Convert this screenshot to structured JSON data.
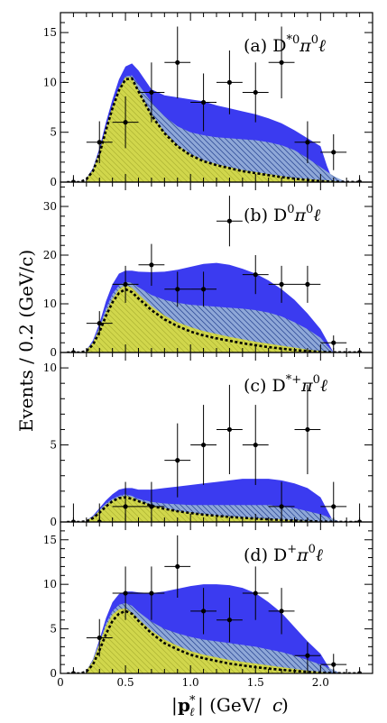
{
  "figure": {
    "ylabel": "Events / 0.2 (GeV/c)",
    "xlabel": "|p*ℓ| (GeV/c)",
    "x_ticks": [
      "0",
      "0.5",
      "1.0",
      "1.5",
      "2.0"
    ]
  },
  "colors": {
    "total_fill": "#3b3bf0",
    "hatched_fill": "#8fa8d8",
    "yellow_fill": "#f5f000",
    "dashed_curve": "#000000",
    "points": "#000000"
  },
  "chart_data": [
    {
      "type": "area",
      "panel_label": "(a) D*0π0ℓ",
      "label_prefix": "(a) D",
      "label_sup": "*0",
      "label_mid": "π",
      "label_sup2": "0",
      "label_end": "ℓ",
      "ylim": [
        0,
        17
      ],
      "y_ticks": [
        0,
        5,
        10,
        15
      ],
      "total": {
        "x": [
          0.2,
          0.25,
          0.3,
          0.35,
          0.4,
          0.45,
          0.5,
          0.55,
          0.6,
          0.7,
          0.8,
          0.9,
          1.0,
          1.1,
          1.2,
          1.3,
          1.4,
          1.5,
          1.6,
          1.7,
          1.8,
          1.9,
          2.0,
          2.05,
          2.1
        ],
        "y": [
          0.4,
          1.4,
          3.4,
          6.0,
          8.3,
          10.3,
          11.6,
          11.9,
          11.2,
          9.3,
          8.7,
          8.5,
          8.3,
          8.1,
          7.7,
          7.4,
          7.1,
          6.8,
          6.4,
          5.9,
          5.2,
          4.4,
          3.6,
          1.6,
          0.0
        ]
      },
      "hatched": {
        "x": [
          0.2,
          0.25,
          0.3,
          0.35,
          0.4,
          0.45,
          0.5,
          0.55,
          0.6,
          0.7,
          0.8,
          0.9,
          1.0,
          1.1,
          1.2,
          1.3,
          1.4,
          1.5,
          1.6,
          1.7,
          1.8,
          1.9,
          2.0,
          2.1,
          2.2
        ],
        "y": [
          0.4,
          1.3,
          3.1,
          5.5,
          7.7,
          9.5,
          10.6,
          10.7,
          9.8,
          8.0,
          6.6,
          5.6,
          5.0,
          4.7,
          4.5,
          4.4,
          4.3,
          4.2,
          4.0,
          3.7,
          3.2,
          2.4,
          1.5,
          0.6,
          0.0
        ]
      },
      "yellow": {
        "x": [
          0.2,
          0.25,
          0.3,
          0.35,
          0.4,
          0.45,
          0.5,
          0.55,
          0.6,
          0.7,
          0.8,
          0.9,
          1.0,
          1.1,
          1.2,
          1.3,
          1.4,
          1.5,
          1.6,
          1.7,
          1.8,
          1.9,
          2.0,
          2.1,
          2.2
        ],
        "y": [
          0.35,
          1.2,
          3.0,
          5.4,
          7.6,
          9.4,
          10.5,
          10.5,
          9.2,
          6.8,
          5.0,
          3.7,
          2.8,
          2.2,
          1.8,
          1.5,
          1.2,
          1.0,
          0.8,
          0.6,
          0.4,
          0.3,
          0.2,
          0.1,
          0.0
        ]
      },
      "dashed": {
        "x": [
          0.05,
          0.15,
          0.2,
          0.25,
          0.3,
          0.35,
          0.4,
          0.45,
          0.5,
          0.55,
          0.6,
          0.7,
          0.8,
          0.9,
          1.0,
          1.1,
          1.2,
          1.3,
          1.4,
          1.5,
          1.6,
          1.7,
          1.8,
          1.9,
          2.0,
          2.1,
          2.2,
          2.3
        ],
        "y": [
          0,
          0,
          0.3,
          1.1,
          2.8,
          5.2,
          7.4,
          9.2,
          10.3,
          10.4,
          9.1,
          6.7,
          4.9,
          3.6,
          2.7,
          2.1,
          1.7,
          1.4,
          1.1,
          0.9,
          0.7,
          0.5,
          0.35,
          0.2,
          0.1,
          0.05,
          0.02,
          0
        ]
      },
      "points": {
        "x": [
          0.1,
          0.3,
          0.5,
          0.7,
          0.9,
          1.1,
          1.3,
          1.5,
          1.7,
          1.9,
          2.1,
          2.3
        ],
        "y": [
          0,
          4,
          6,
          9,
          12,
          8,
          10,
          9,
          12,
          4,
          3,
          0
        ],
        "yerr": [
          0.7,
          2.1,
          2.6,
          3.0,
          3.6,
          2.9,
          3.2,
          3.0,
          3.6,
          2.1,
          1.8,
          0.7
        ]
      }
    },
    {
      "type": "area",
      "panel_label": "(b) D0π0ℓ",
      "label_prefix": "(b) D",
      "label_sup": "0",
      "label_mid": "π",
      "label_sup2": "0",
      "label_end": "ℓ",
      "ylim": [
        0,
        35
      ],
      "y_ticks": [
        0,
        10,
        20,
        30
      ],
      "total": {
        "x": [
          0.2,
          0.25,
          0.3,
          0.35,
          0.4,
          0.45,
          0.5,
          0.55,
          0.6,
          0.7,
          0.8,
          0.9,
          1.0,
          1.1,
          1.2,
          1.3,
          1.4,
          1.5,
          1.6,
          1.7,
          1.8,
          1.9,
          2.0,
          2.05,
          2.1
        ],
        "y": [
          0.5,
          2.5,
          6.0,
          10.5,
          14.0,
          16.2,
          16.8,
          16.8,
          16.6,
          16.5,
          16.6,
          17.0,
          17.6,
          18.2,
          18.4,
          18.0,
          17.2,
          16.2,
          14.8,
          13.0,
          10.8,
          8.0,
          4.8,
          2.4,
          0.0
        ]
      },
      "hatched": {
        "x": [
          0.2,
          0.25,
          0.3,
          0.35,
          0.4,
          0.45,
          0.5,
          0.55,
          0.6,
          0.7,
          0.8,
          0.9,
          1.0,
          1.1,
          1.2,
          1.3,
          1.4,
          1.5,
          1.6,
          1.7,
          1.8,
          1.9,
          2.0,
          2.05,
          2.1
        ],
        "y": [
          0.5,
          2.2,
          5.3,
          9.0,
          12.0,
          13.8,
          14.5,
          14.3,
          13.4,
          11.8,
          10.8,
          10.2,
          9.8,
          9.6,
          9.4,
          9.2,
          9.0,
          8.7,
          8.2,
          7.4,
          6.2,
          4.8,
          3.0,
          1.4,
          0.0
        ]
      },
      "yellow": {
        "x": [
          0.2,
          0.25,
          0.3,
          0.35,
          0.4,
          0.45,
          0.5,
          0.55,
          0.6,
          0.7,
          0.8,
          0.9,
          1.0,
          1.1,
          1.2,
          1.3,
          1.4,
          1.5,
          1.6,
          1.7,
          1.8,
          1.9,
          2.0,
          2.1
        ],
        "y": [
          0.45,
          2.0,
          4.8,
          8.2,
          11.0,
          13.0,
          13.8,
          13.3,
          12.0,
          9.5,
          7.6,
          6.2,
          5.2,
          4.4,
          3.8,
          3.2,
          2.7,
          2.2,
          1.8,
          1.4,
          1.0,
          0.6,
          0.3,
          0.0
        ]
      },
      "dashed": {
        "x": [
          0.05,
          0.15,
          0.2,
          0.25,
          0.3,
          0.35,
          0.4,
          0.45,
          0.5,
          0.55,
          0.6,
          0.7,
          0.8,
          0.9,
          1.0,
          1.1,
          1.2,
          1.3,
          1.4,
          1.5,
          1.6,
          1.7,
          1.8,
          1.9,
          2.0,
          2.1,
          2.2,
          2.3
        ],
        "y": [
          0,
          0,
          0.3,
          1.6,
          4.2,
          7.5,
          10.3,
          12.2,
          13.0,
          12.4,
          11.1,
          8.7,
          6.8,
          5.4,
          4.3,
          3.5,
          2.9,
          2.4,
          1.9,
          1.5,
          1.1,
          0.8,
          0.5,
          0.3,
          0.15,
          0.05,
          0.02,
          0
        ]
      },
      "points": {
        "x": [
          0.1,
          0.3,
          0.5,
          0.7,
          0.9,
          1.1,
          1.3,
          1.5,
          1.7,
          1.9,
          2.1,
          2.3
        ],
        "y": [
          0,
          6,
          14,
          18,
          13,
          13,
          27,
          16,
          14,
          14,
          2,
          0
        ],
        "yerr": [
          0.8,
          2.5,
          3.8,
          4.3,
          3.6,
          3.6,
          5.2,
          4.0,
          3.8,
          3.8,
          1.5,
          0.8
        ]
      }
    },
    {
      "type": "area",
      "panel_label": "(c) D*+π0ℓ",
      "label_prefix": "(c) D",
      "label_sup": "*+",
      "label_mid": "π",
      "label_sup2": "0",
      "label_end": "ℓ",
      "ylim": [
        0,
        11
      ],
      "y_ticks": [
        0,
        5,
        10
      ],
      "total": {
        "x": [
          0.2,
          0.25,
          0.3,
          0.35,
          0.4,
          0.45,
          0.5,
          0.55,
          0.6,
          0.7,
          0.8,
          0.9,
          1.0,
          1.1,
          1.2,
          1.3,
          1.4,
          1.5,
          1.6,
          1.7,
          1.8,
          1.9,
          2.0,
          2.05,
          2.1
        ],
        "y": [
          0.1,
          0.4,
          0.9,
          1.4,
          1.8,
          2.1,
          2.2,
          2.2,
          2.1,
          2.1,
          2.2,
          2.3,
          2.4,
          2.5,
          2.6,
          2.7,
          2.8,
          2.8,
          2.8,
          2.7,
          2.5,
          2.2,
          1.6,
          0.8,
          0.0
        ]
      },
      "hatched": {
        "x": [
          0.2,
          0.25,
          0.3,
          0.35,
          0.4,
          0.45,
          0.5,
          0.55,
          0.6,
          0.7,
          0.8,
          0.9,
          1.0,
          1.1,
          1.2,
          1.3,
          1.4,
          1.5,
          1.6,
          1.7,
          1.8,
          1.9,
          2.0,
          2.1,
          2.15
        ],
        "y": [
          0.1,
          0.35,
          0.8,
          1.2,
          1.5,
          1.7,
          1.8,
          1.7,
          1.5,
          1.3,
          1.2,
          1.15,
          1.1,
          1.1,
          1.1,
          1.1,
          1.1,
          1.1,
          1.1,
          1.0,
          0.9,
          0.7,
          0.5,
          0.2,
          0.0
        ]
      },
      "yellow": {
        "x": [
          0.2,
          0.25,
          0.3,
          0.35,
          0.4,
          0.45,
          0.5,
          0.55,
          0.6,
          0.7,
          0.8,
          0.9,
          1.0,
          1.1,
          1.2,
          1.3,
          1.4,
          1.5,
          1.6,
          1.7,
          1.8,
          1.9,
          2.0,
          2.1
        ],
        "y": [
          0.1,
          0.3,
          0.7,
          1.1,
          1.4,
          1.6,
          1.7,
          1.6,
          1.4,
          1.1,
          0.9,
          0.7,
          0.6,
          0.5,
          0.4,
          0.35,
          0.3,
          0.25,
          0.2,
          0.15,
          0.1,
          0.05,
          0.02,
          0.0
        ]
      },
      "dashed": {
        "x": [
          0.05,
          0.15,
          0.2,
          0.25,
          0.3,
          0.35,
          0.4,
          0.45,
          0.5,
          0.55,
          0.6,
          0.7,
          0.8,
          0.9,
          1.0,
          1.1,
          1.2,
          1.3,
          1.4,
          1.5,
          1.6,
          1.7,
          1.8,
          1.9,
          2.0,
          2.1,
          2.2,
          2.3
        ],
        "y": [
          0,
          0,
          0.05,
          0.25,
          0.6,
          1.0,
          1.35,
          1.55,
          1.6,
          1.5,
          1.35,
          1.05,
          0.85,
          0.7,
          0.58,
          0.48,
          0.4,
          0.33,
          0.27,
          0.22,
          0.17,
          0.13,
          0.09,
          0.06,
          0.03,
          0.01,
          0,
          0
        ]
      },
      "points": {
        "x": [
          0.1,
          0.3,
          0.5,
          0.7,
          0.9,
          1.1,
          1.3,
          1.5,
          1.7,
          1.9,
          2.1,
          2.3
        ],
        "y": [
          0,
          0,
          1,
          1,
          4,
          5,
          6,
          5,
          1,
          6,
          1,
          0
        ],
        "yerr": [
          1.2,
          1.2,
          1.6,
          1.6,
          2.4,
          2.6,
          2.9,
          2.6,
          1.6,
          2.9,
          1.6,
          1.2
        ]
      }
    },
    {
      "type": "area",
      "panel_label": "(d) D+π0ℓ",
      "label_prefix": "(d) D",
      "label_sup": "+",
      "label_mid": "π",
      "label_sup2": "0",
      "label_end": "ℓ",
      "ylim": [
        0,
        17
      ],
      "y_ticks": [
        0,
        5,
        10,
        15
      ],
      "total": {
        "x": [
          0.2,
          0.25,
          0.3,
          0.35,
          0.4,
          0.45,
          0.5,
          0.55,
          0.6,
          0.7,
          0.8,
          0.9,
          1.0,
          1.1,
          1.2,
          1.3,
          1.4,
          1.5,
          1.6,
          1.7,
          1.8,
          1.9,
          2.0,
          2.05,
          2.1
        ],
        "y": [
          0.3,
          1.6,
          3.8,
          6.2,
          8.0,
          8.9,
          9.2,
          9.2,
          9.1,
          9.0,
          9.2,
          9.5,
          9.8,
          10.0,
          10.0,
          9.9,
          9.6,
          9.0,
          8.0,
          6.8,
          5.2,
          3.6,
          2.2,
          1.0,
          0.0
        ]
      },
      "hatched": {
        "x": [
          0.2,
          0.25,
          0.3,
          0.35,
          0.4,
          0.45,
          0.5,
          0.55,
          0.6,
          0.7,
          0.8,
          0.9,
          1.0,
          1.1,
          1.2,
          1.3,
          1.4,
          1.5,
          1.6,
          1.7,
          1.8,
          1.9,
          2.0,
          2.1,
          2.15
        ],
        "y": [
          0.3,
          1.5,
          3.5,
          5.6,
          7.0,
          7.7,
          7.9,
          7.6,
          6.9,
          5.8,
          5.0,
          4.5,
          4.1,
          3.8,
          3.6,
          3.4,
          3.2,
          3.0,
          2.7,
          2.4,
          2.0,
          1.5,
          1.0,
          0.4,
          0.0
        ]
      },
      "yellow": {
        "x": [
          0.2,
          0.25,
          0.3,
          0.35,
          0.4,
          0.45,
          0.5,
          0.55,
          0.6,
          0.7,
          0.8,
          0.9,
          1.0,
          1.1,
          1.2,
          1.3,
          1.4,
          1.5,
          1.6,
          1.7,
          1.8,
          1.9,
          2.0,
          2.1
        ],
        "y": [
          0.3,
          1.4,
          3.3,
          5.3,
          6.6,
          7.2,
          7.3,
          6.8,
          6.1,
          4.8,
          3.8,
          3.1,
          2.5,
          2.1,
          1.8,
          1.5,
          1.3,
          1.1,
          0.9,
          0.7,
          0.5,
          0.3,
          0.15,
          0.0
        ]
      },
      "dashed": {
        "x": [
          0.05,
          0.15,
          0.2,
          0.25,
          0.3,
          0.35,
          0.4,
          0.45,
          0.5,
          0.55,
          0.6,
          0.7,
          0.8,
          0.9,
          1.0,
          1.1,
          1.2,
          1.3,
          1.4,
          1.5,
          1.6,
          1.7,
          1.8,
          1.9,
          2.0,
          2.1,
          2.2,
          2.3
        ],
        "y": [
          0,
          0,
          0.2,
          1.0,
          2.6,
          4.4,
          5.9,
          6.7,
          7.0,
          6.7,
          5.9,
          4.5,
          3.4,
          2.7,
          2.1,
          1.7,
          1.4,
          1.1,
          0.9,
          0.7,
          0.55,
          0.4,
          0.28,
          0.18,
          0.1,
          0.04,
          0.01,
          0
        ]
      },
      "points": {
        "x": [
          0.1,
          0.3,
          0.5,
          0.7,
          0.9,
          1.1,
          1.3,
          1.5,
          1.7,
          1.9,
          2.1,
          2.3
        ],
        "y": [
          0,
          4,
          9,
          9,
          12,
          7,
          6,
          9,
          7,
          2,
          1,
          0
        ],
        "yerr": [
          0.7,
          2.1,
          3.0,
          3.0,
          3.5,
          2.6,
          2.5,
          3.0,
          2.6,
          1.5,
          1.2,
          0.7
        ]
      }
    }
  ]
}
